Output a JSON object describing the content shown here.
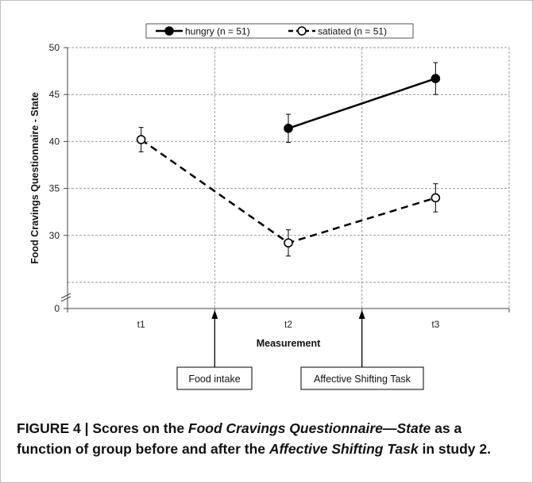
{
  "chart_data": {
    "type": "line",
    "xlabel": "Measurement",
    "ylabel": "Food Cravings Questionnaire - State",
    "categories": [
      "t1",
      "t2",
      "t3"
    ],
    "yticks": [
      0,
      30,
      35,
      40,
      45,
      50
    ],
    "ylim_broken": [
      25,
      50
    ],
    "axis_break": true,
    "grid": true,
    "legend_position": "top-center",
    "series": [
      {
        "name": "hungry (n = 51)",
        "marker": "filled-circle",
        "line": "solid",
        "values": [
          null,
          41.4,
          46.7
        ],
        "errors": [
          null,
          1.5,
          1.7
        ],
        "color": "#000000"
      },
      {
        "name": "satiated (n = 51)",
        "marker": "open-circle",
        "line": "dashed",
        "values": [
          40.2,
          29.2,
          34.0
        ],
        "errors": [
          1.3,
          1.4,
          1.5
        ],
        "color": "#000000"
      }
    ],
    "annotations": [
      {
        "text": "Food intake",
        "between": [
          "t1",
          "t2"
        ]
      },
      {
        "text": "Affective Shifting Task",
        "between": [
          "t2",
          "t3"
        ]
      }
    ]
  },
  "caption": {
    "label": "FIGURE 4 | ",
    "part1": "Scores on the ",
    "em1": "Food Cravings Questionnaire—State",
    "part2": " as a function of group before and after the ",
    "em2": "Affective Shifting Task",
    "part3": " in study 2."
  }
}
